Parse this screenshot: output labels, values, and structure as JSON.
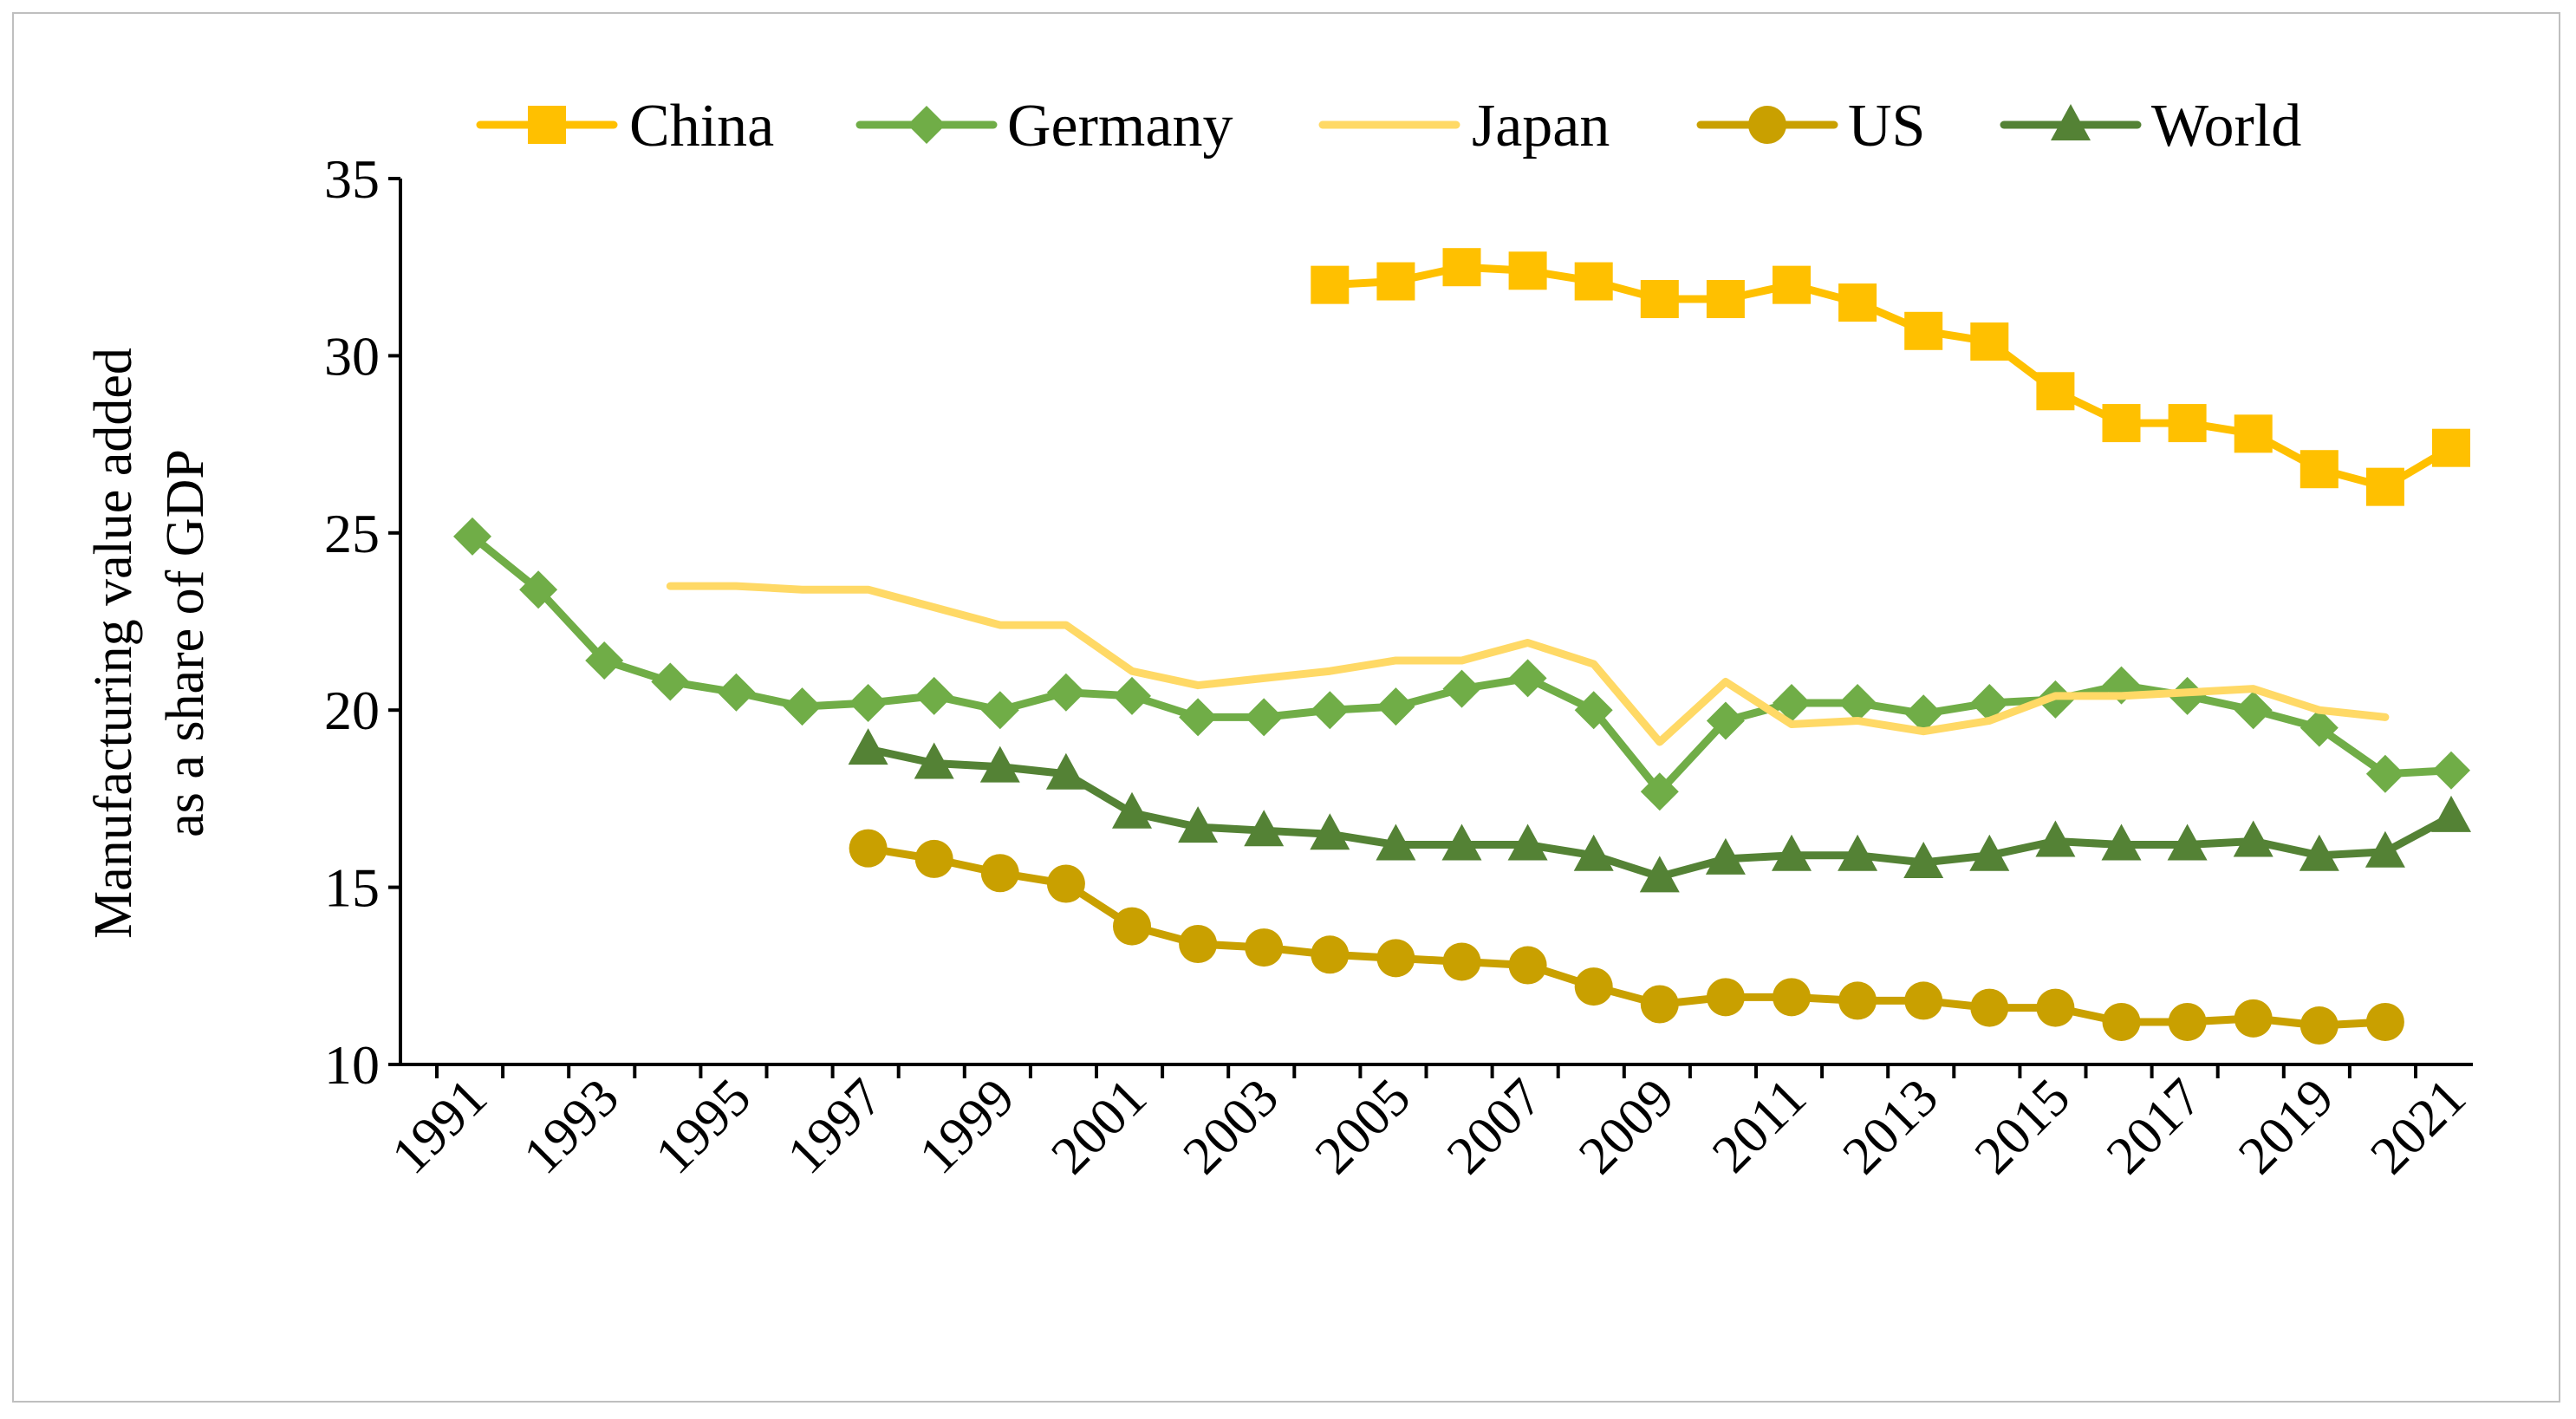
{
  "chart_data": {
    "type": "line",
    "title": "",
    "xlabel": "",
    "ylabel_lines": [
      "Manufacturing value added",
      "as a share of GDP"
    ],
    "ylim": [
      10,
      35
    ],
    "yticks": [
      "10",
      "15",
      "20",
      "25",
      "30",
      "35"
    ],
    "xlim": [
      1991,
      2021
    ],
    "xticks": [
      "1991",
      "1993",
      "1995",
      "1997",
      "1999",
      "2001",
      "2003",
      "2005",
      "2007",
      "2009",
      "2011",
      "2013",
      "2015",
      "2017",
      "2019",
      "2021"
    ],
    "legend_position": "top",
    "grid": false,
    "series": [
      {
        "name": "China",
        "color": "#FFC000",
        "marker": "square",
        "x": [
          2004,
          2005,
          2006,
          2007,
          2008,
          2009,
          2010,
          2011,
          2012,
          2013,
          2014,
          2015,
          2016,
          2017,
          2018,
          2019,
          2020,
          2021
        ],
        "values": [
          32.0,
          32.1,
          32.5,
          32.4,
          32.1,
          31.6,
          31.6,
          32.0,
          31.5,
          30.7,
          30.4,
          29.0,
          28.1,
          28.1,
          27.8,
          26.8,
          26.3,
          27.4
        ]
      },
      {
        "name": "Germany",
        "color": "#70AD47",
        "marker": "diamond",
        "x": [
          1991,
          1992,
          1993,
          1994,
          1995,
          1996,
          1997,
          1998,
          1999,
          2000,
          2001,
          2002,
          2003,
          2004,
          2005,
          2006,
          2007,
          2008,
          2009,
          2010,
          2011,
          2012,
          2013,
          2014,
          2015,
          2016,
          2017,
          2018,
          2019,
          2020,
          2021
        ],
        "values": [
          24.9,
          23.4,
          21.4,
          20.8,
          20.5,
          20.1,
          20.2,
          20.4,
          20.0,
          20.5,
          20.4,
          19.8,
          19.8,
          20.0,
          20.1,
          20.6,
          20.9,
          20.0,
          17.7,
          19.7,
          20.2,
          20.2,
          19.9,
          20.2,
          20.3,
          20.7,
          20.4,
          20.0,
          19.5,
          18.2,
          18.3
        ]
      },
      {
        "name": "Japan",
        "color": "#FFD966",
        "marker": "none",
        "x": [
          1994,
          1995,
          1996,
          1997,
          1998,
          1999,
          2000,
          2001,
          2002,
          2003,
          2004,
          2005,
          2006,
          2007,
          2008,
          2009,
          2010,
          2011,
          2012,
          2013,
          2014,
          2015,
          2016,
          2017,
          2018,
          2019,
          2020
        ],
        "values": [
          23.5,
          23.5,
          23.4,
          23.4,
          22.9,
          22.4,
          22.4,
          21.1,
          20.7,
          20.9,
          21.1,
          21.4,
          21.4,
          21.9,
          21.3,
          19.1,
          20.8,
          19.6,
          19.7,
          19.4,
          19.7,
          20.4,
          20.4,
          20.5,
          20.6,
          20.0,
          19.8
        ]
      },
      {
        "name": "US",
        "color": "#C9A000",
        "marker": "circle",
        "x": [
          1997,
          1998,
          1999,
          2000,
          2001,
          2002,
          2003,
          2004,
          2005,
          2006,
          2007,
          2008,
          2009,
          2010,
          2011,
          2012,
          2013,
          2014,
          2015,
          2016,
          2017,
          2018,
          2019,
          2020
        ],
        "values": [
          16.1,
          15.8,
          15.4,
          15.1,
          13.9,
          13.4,
          13.3,
          13.1,
          13.0,
          12.9,
          12.8,
          12.2,
          11.7,
          11.9,
          11.9,
          11.8,
          11.8,
          11.6,
          11.6,
          11.2,
          11.2,
          11.3,
          11.1,
          11.2
        ]
      },
      {
        "name": "World",
        "color": "#548235",
        "marker": "triangle",
        "x": [
          1997,
          1998,
          1999,
          2000,
          2001,
          2002,
          2003,
          2004,
          2005,
          2006,
          2007,
          2008,
          2009,
          2010,
          2011,
          2012,
          2013,
          2014,
          2015,
          2016,
          2017,
          2018,
          2019,
          2020,
          2021
        ],
        "values": [
          18.9,
          18.5,
          18.4,
          18.2,
          17.1,
          16.7,
          16.6,
          16.5,
          16.2,
          16.2,
          16.2,
          15.9,
          15.3,
          15.8,
          15.9,
          15.9,
          15.7,
          15.9,
          16.3,
          16.2,
          16.2,
          16.3,
          15.9,
          16.0,
          17.0
        ]
      }
    ]
  }
}
